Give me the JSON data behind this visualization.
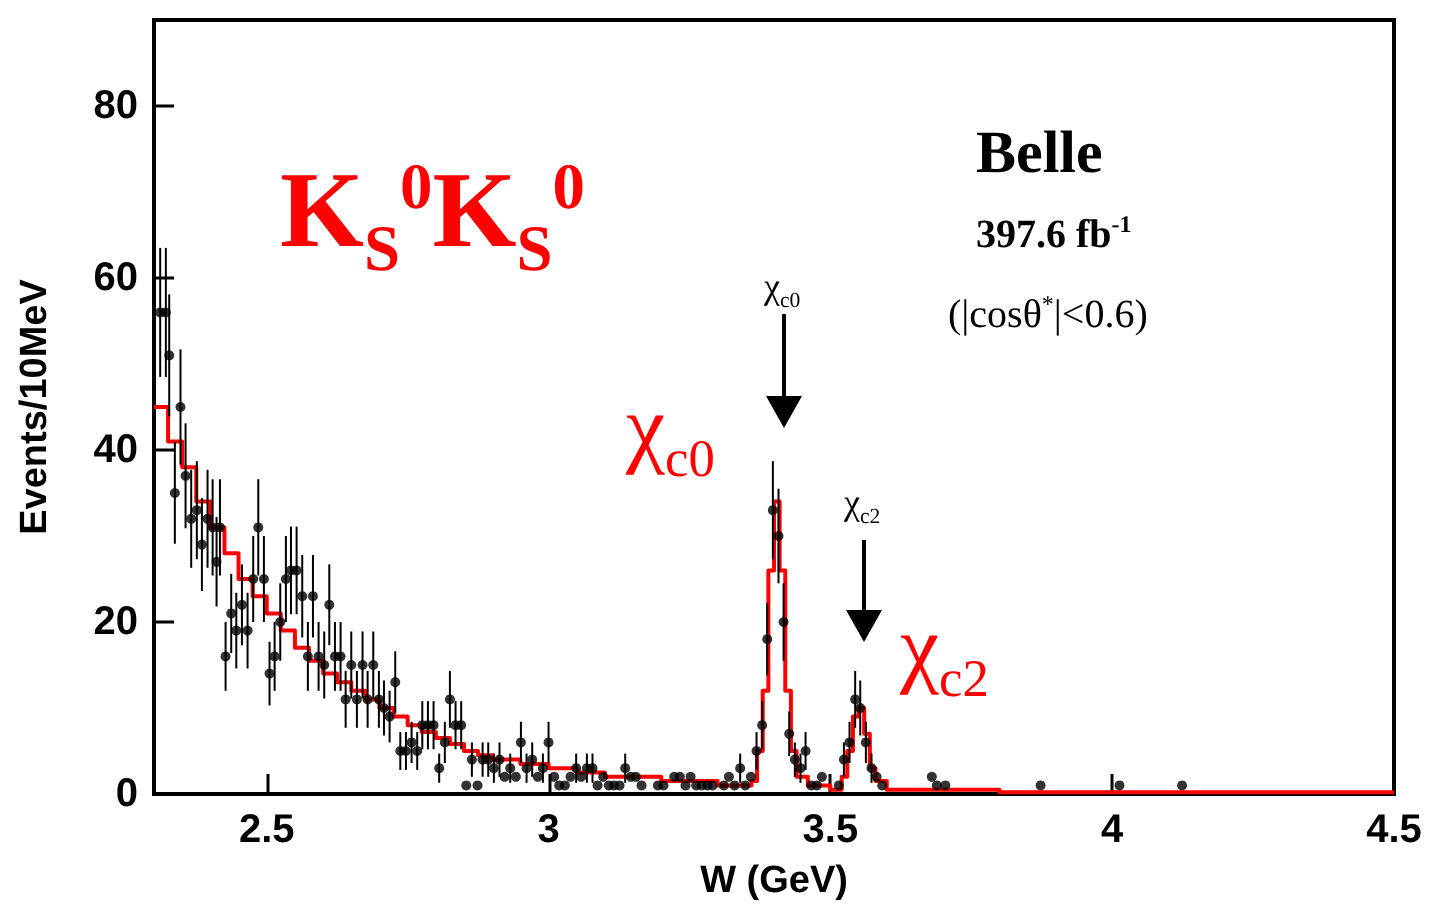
{
  "chart_data": {
    "type": "scatter",
    "xlabel": "W (GeV)",
    "ylabel": "Events/10MeV",
    "xlim": [
      2.3,
      4.5
    ],
    "xticks": [
      2.5,
      3,
      3.5,
      4,
      4.5
    ],
    "ylim": [
      0,
      90
    ],
    "yticks": [
      0,
      20,
      40,
      60,
      80
    ],
    "annotations": [
      "K$_{S}$$^{0}$K$_{S}$$^{0}$",
      "Belle",
      "397.6 fb$^{-1}$",
      "(|cosθ$^{*}$|<0.6)",
      "χ$_{c0}$",
      "χ$_{c2}$",
      "χ$_{c0}$",
      "χ$_{c2}$"
    ],
    "series": [
      {
        "color": "#000000",
        "marker": "circle",
        "x": [
          2.311,
          2.321,
          2.327,
          2.337,
          2.347,
          2.356,
          2.366,
          2.376,
          2.385,
          2.395,
          2.404,
          2.411,
          2.417,
          2.427,
          2.437,
          2.446,
          2.456,
          2.466,
          2.476,
          2.485,
          2.495,
          2.505,
          2.514,
          2.524,
          2.534,
          2.543,
          2.553,
          2.563,
          2.573,
          2.582,
          2.592,
          2.602,
          2.611,
          2.621,
          2.631,
          2.64,
          2.65,
          2.66,
          2.67,
          2.679,
          2.689,
          2.699,
          2.708,
          2.718,
          2.728,
          2.737,
          2.747,
          2.757,
          2.767,
          2.776,
          2.786,
          2.796,
          2.806,
          2.816,
          2.825,
          2.835,
          2.845,
          2.854,
          2.864,
          2.874,
          2.883,
          2.893,
          2.903,
          2.913,
          2.922,
          2.932,
          2.942,
          2.951,
          2.961,
          2.971,
          2.981,
          2.99,
          3.0,
          3.01,
          3.019,
          3.029,
          3.039,
          3.049,
          3.058,
          3.068,
          3.078,
          3.087,
          3.097,
          3.107,
          3.116,
          3.126,
          3.136,
          3.146,
          3.155,
          3.165,
          3.194,
          3.204,
          3.223,
          3.233,
          3.243,
          3.252,
          3.262,
          3.272,
          3.282,
          3.291,
          3.311,
          3.32,
          3.33,
          3.34,
          3.349,
          3.359,
          3.369,
          3.379,
          3.388,
          3.398,
          3.408,
          3.417,
          3.427,
          3.437,
          3.447,
          3.456,
          3.466,
          3.476,
          3.485,
          3.515,
          3.524,
          3.534,
          3.544,
          3.553,
          3.563,
          3.573,
          3.582,
          3.592,
          3.68,
          3.689,
          3.704,
          3.873,
          4.013,
          4.124
        ],
        "values": [
          56,
          56,
          51,
          35,
          45,
          37,
          32,
          33,
          29,
          32,
          31,
          27,
          31,
          16,
          21,
          19,
          22,
          19,
          25,
          31,
          25,
          14,
          16,
          20,
          25,
          26,
          26,
          23,
          16,
          23,
          16,
          15,
          22,
          16,
          16,
          11,
          15,
          11,
          15,
          11,
          15,
          11,
          10,
          9,
          13,
          5,
          5,
          6,
          5,
          8,
          8,
          8,
          3,
          6,
          11,
          8,
          8,
          1,
          4,
          1,
          4,
          4,
          3,
          4,
          2,
          3,
          2,
          6,
          3,
          4,
          2,
          3,
          6,
          2,
          1,
          1,
          2,
          3,
          2,
          3,
          3,
          1,
          2,
          1,
          1,
          1,
          3,
          2,
          2,
          1,
          1,
          1,
          2,
          2,
          1,
          2,
          1,
          1,
          1,
          1,
          1,
          2,
          1,
          3,
          1,
          2,
          5,
          8,
          18,
          33,
          30,
          20,
          7,
          4,
          3,
          5,
          1,
          1,
          2,
          1,
          4,
          6,
          11,
          10,
          6,
          3,
          2,
          1,
          2,
          1,
          1,
          1,
          1,
          1
        ],
        "errors": [
          7.5,
          7.5,
          7.1,
          5.9,
          6.7,
          6.1,
          5.7,
          5.7,
          5.4,
          5.7,
          5.6,
          5.2,
          5.6,
          4,
          4.6,
          4.4,
          4.7,
          4.4,
          5,
          5.6,
          5,
          3.7,
          4,
          4.5,
          5,
          5.1,
          5.1,
          4.8,
          4,
          4.8,
          4,
          3.9,
          4.7,
          4,
          4,
          3.3,
          3.9,
          3.3,
          3.9,
          3.3,
          3.9,
          3.3,
          3.2,
          3,
          3.6,
          2.2,
          2.2,
          2.4,
          2.2,
          2.8,
          2.8,
          2.8,
          1.7,
          2.4,
          3.3,
          2.8,
          2.8,
          null,
          2,
          null,
          2,
          2,
          1.7,
          2,
          null,
          1.7,
          null,
          2.4,
          1.7,
          2,
          null,
          1.7,
          2.4,
          null,
          null,
          null,
          null,
          1.7,
          null,
          1.7,
          1.7,
          null,
          null,
          null,
          null,
          null,
          1.7,
          null,
          null,
          null,
          null,
          null,
          null,
          null,
          null,
          null,
          null,
          null,
          null,
          null,
          null,
          null,
          null,
          1.7,
          null,
          null,
          2.2,
          2.8,
          4.2,
          5.7,
          5.5,
          4.5,
          2.6,
          2,
          1.7,
          2.2,
          null,
          null,
          null,
          null,
          2,
          2.4,
          3.3,
          3.2,
          2.4,
          1.7,
          null,
          null,
          null,
          null,
          null,
          null,
          null,
          null
        ]
      },
      {
        "type": "step",
        "color": "#ff0000",
        "marker": "none",
        "x": [
          2.3,
          2.325,
          2.35,
          2.375,
          2.4,
          2.425,
          2.45,
          2.475,
          2.5,
          2.525,
          2.55,
          2.575,
          2.6,
          2.625,
          2.65,
          2.675,
          2.7,
          2.725,
          2.75,
          2.775,
          2.8,
          2.825,
          2.85,
          2.875,
          2.9,
          2.95,
          3.0,
          3.05,
          3.1,
          3.2,
          3.3,
          3.36,
          3.37,
          3.38,
          3.39,
          3.4,
          3.41,
          3.42,
          3.43,
          3.44,
          3.46,
          3.5,
          3.52,
          3.53,
          3.54,
          3.55,
          3.56,
          3.57,
          3.58,
          3.6,
          3.8,
          4.5
        ],
        "values": [
          45,
          41,
          38,
          34,
          31,
          28,
          25,
          23,
          21,
          19,
          17,
          15.5,
          14,
          13,
          12,
          11,
          10,
          9,
          8,
          7.2,
          6.5,
          5.8,
          5,
          4.5,
          4,
          3.5,
          3,
          2.5,
          2,
          1.5,
          1,
          1.5,
          5,
          12,
          26,
          34,
          26,
          12,
          5,
          2,
          1,
          0.5,
          2,
          5,
          9,
          10,
          7,
          3,
          1.5,
          0.5,
          0.2,
          0.2
        ]
      }
    ]
  }
}
